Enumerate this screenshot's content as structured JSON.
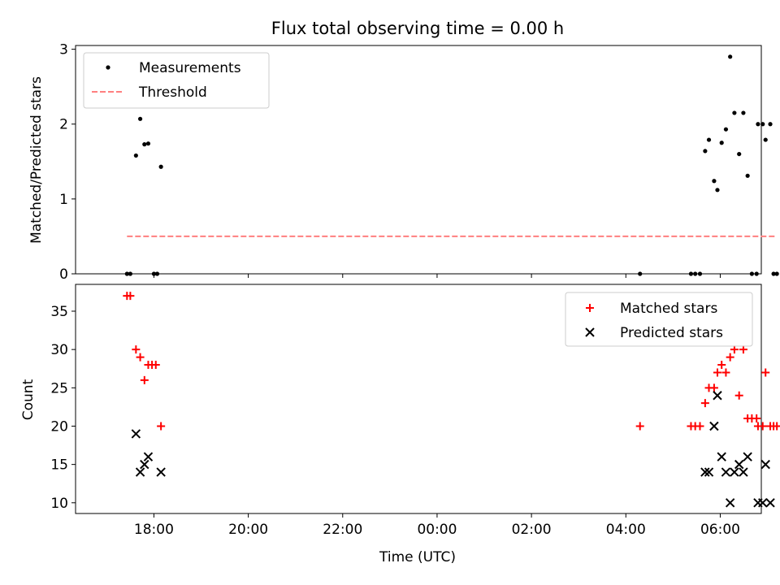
{
  "figure": {
    "title": "Flux total observing time = 0.00 h",
    "xlabel": "Time (UTC)",
    "x_tick_labels": [
      "18:00",
      "20:00",
      "22:00",
      "00:00",
      "02:00",
      "04:00",
      "06:00"
    ]
  },
  "chart_data": [
    {
      "type": "scatter",
      "ylabel": "Matched/Predicted stars",
      "x_unit": "hours since 17:00 UTC",
      "xlim": [
        -0.66,
        13.87
      ],
      "ylim": [
        0,
        3.05
      ],
      "yticks": [
        0,
        1,
        2,
        3
      ],
      "legend_position": "top-left",
      "series": [
        {
          "name": "Measurements",
          "marker": "dot",
          "color": "#000000",
          "points": [
            [
              0.43,
              0
            ],
            [
              0.5,
              0
            ],
            [
              0.62,
              1.58
            ],
            [
              0.71,
              2.07
            ],
            [
              0.8,
              1.73
            ],
            [
              0.88,
              1.74
            ],
            [
              1.0,
              0
            ],
            [
              1.07,
              0
            ],
            [
              1.15,
              1.43
            ],
            [
              11.3,
              0
            ],
            [
              12.38,
              0
            ],
            [
              12.47,
              0
            ],
            [
              12.57,
              0
            ],
            [
              12.68,
              1.64
            ],
            [
              12.76,
              1.79
            ],
            [
              12.87,
              1.24
            ],
            [
              12.94,
              1.12
            ],
            [
              13.03,
              1.75
            ],
            [
              13.12,
              1.93
            ],
            [
              13.21,
              2.9
            ],
            [
              13.3,
              2.15
            ],
            [
              13.4,
              1.6
            ],
            [
              13.49,
              2.15
            ],
            [
              13.58,
              1.31
            ],
            [
              13.67,
              0
            ],
            [
              13.77,
              0
            ],
            [
              13.8,
              2.0
            ],
            [
              13.9,
              2.0
            ],
            [
              13.96,
              1.79
            ],
            [
              14.06,
              2.0
            ],
            [
              14.13,
              0
            ],
            [
              14.2,
              0
            ]
          ]
        },
        {
          "name": "Threshold",
          "style": "dashed-line",
          "color": "#ff7f7f",
          "points": [
            [
              0.43,
              0.5
            ],
            [
              14.2,
              0.5
            ]
          ]
        }
      ]
    },
    {
      "type": "scatter",
      "ylabel": "Count",
      "x_unit": "hours since 17:00 UTC",
      "xlim": [
        -0.66,
        13.87
      ],
      "ylim": [
        8.6,
        38.5
      ],
      "yticks": [
        10,
        15,
        20,
        25,
        30,
        35
      ],
      "legend_position": "top-right",
      "series": [
        {
          "name": "Matched stars",
          "marker": "plus",
          "color": "#ff0000",
          "points": [
            [
              0.43,
              37
            ],
            [
              0.5,
              37
            ],
            [
              0.62,
              30
            ],
            [
              0.71,
              29
            ],
            [
              0.8,
              26
            ],
            [
              0.88,
              28
            ],
            [
              0.96,
              28
            ],
            [
              1.04,
              28
            ],
            [
              1.15,
              20
            ],
            [
              11.3,
              20
            ],
            [
              12.38,
              20
            ],
            [
              12.47,
              20
            ],
            [
              12.57,
              20
            ],
            [
              12.68,
              23
            ],
            [
              12.76,
              25
            ],
            [
              12.87,
              25
            ],
            [
              12.94,
              27
            ],
            [
              13.03,
              28
            ],
            [
              13.12,
              27
            ],
            [
              13.21,
              29
            ],
            [
              13.3,
              30
            ],
            [
              13.4,
              24
            ],
            [
              13.49,
              30
            ],
            [
              13.58,
              21
            ],
            [
              13.67,
              21
            ],
            [
              13.77,
              21
            ],
            [
              13.8,
              20
            ],
            [
              13.9,
              20
            ],
            [
              13.96,
              27
            ],
            [
              14.06,
              20
            ],
            [
              14.13,
              20
            ],
            [
              14.2,
              20
            ]
          ]
        },
        {
          "name": "Predicted stars",
          "marker": "x",
          "color": "#000000",
          "points": [
            [
              0.62,
              19
            ],
            [
              0.71,
              14
            ],
            [
              0.8,
              15
            ],
            [
              0.88,
              16
            ],
            [
              1.15,
              14
            ],
            [
              12.68,
              14
            ],
            [
              12.76,
              14
            ],
            [
              12.87,
              20
            ],
            [
              12.94,
              24
            ],
            [
              13.03,
              16
            ],
            [
              13.12,
              14
            ],
            [
              13.21,
              10
            ],
            [
              13.3,
              14
            ],
            [
              13.4,
              15
            ],
            [
              13.49,
              14
            ],
            [
              13.58,
              16
            ],
            [
              13.8,
              10
            ],
            [
              13.9,
              10
            ],
            [
              13.96,
              15
            ],
            [
              14.06,
              10
            ]
          ]
        }
      ]
    }
  ]
}
